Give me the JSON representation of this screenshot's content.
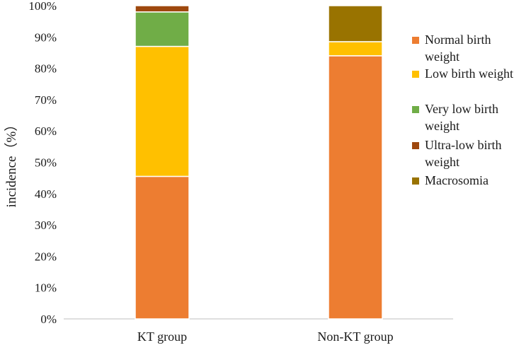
{
  "chart_data": {
    "type": "bar",
    "stacked": true,
    "ylabel": "incidence（%）",
    "ylim": [
      0,
      100
    ],
    "yticks": [
      0,
      10,
      20,
      30,
      40,
      50,
      60,
      70,
      80,
      90,
      100
    ],
    "ytick_labels": [
      "0%",
      "10%",
      "20%",
      "30%",
      "40%",
      "50%",
      "60%",
      "70%",
      "80%",
      "90%",
      "100%"
    ],
    "categories": [
      "KT group",
      "Non-KT group"
    ],
    "legend_position": "right",
    "series": [
      {
        "name": "Normal birth weight",
        "color": "#ED7D31",
        "values": [
          45.5,
          84.0
        ]
      },
      {
        "name": "Low birth weight",
        "color": "#FFC000",
        "values": [
          41.5,
          4.5
        ]
      },
      {
        "name": "Very low birth weight",
        "color": "#70AD47",
        "values": [
          11.0,
          0.0
        ]
      },
      {
        "name": "Ultra-low birth weight",
        "color": "#9E480E",
        "values": [
          2.0,
          0.0
        ]
      },
      {
        "name": "Macrosomia",
        "color": "#997300",
        "values": [
          0.0,
          11.5
        ]
      }
    ]
  }
}
